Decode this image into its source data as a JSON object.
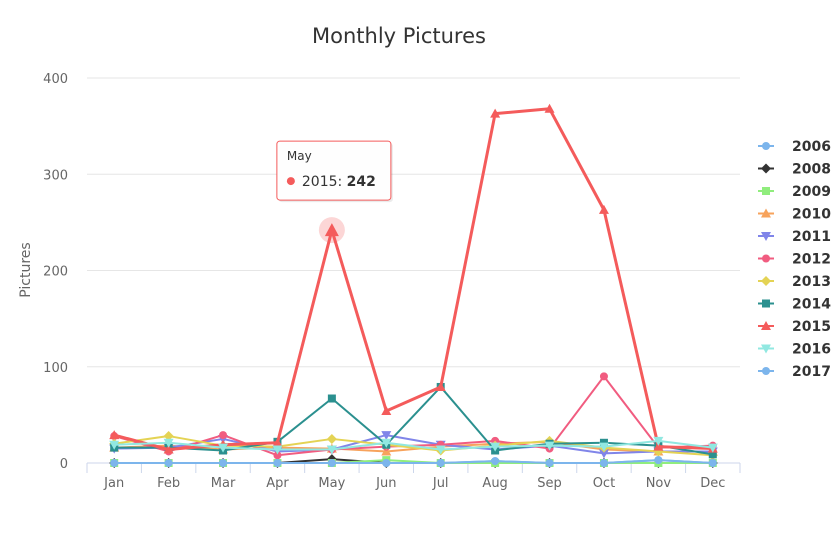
{
  "chart_data": {
    "type": "line",
    "title": "Monthly Pictures",
    "xlabel": "",
    "ylabel": "Pictures",
    "ylim": [
      0,
      400
    ],
    "yticks": [
      "0",
      "100",
      "200",
      "300",
      "400"
    ],
    "categories": [
      "Jan",
      "Feb",
      "Mar",
      "Apr",
      "May",
      "Jun",
      "Jul",
      "Aug",
      "Sep",
      "Oct",
      "Nov",
      "Dec"
    ],
    "grid": true,
    "legend_position": "right",
    "series": [
      {
        "name": "2006",
        "color": "#7cb5ec",
        "marker": "circle",
        "values": [
          0,
          0,
          0,
          0,
          0,
          0,
          0,
          2,
          0,
          0,
          3,
          0
        ]
      },
      {
        "name": "2008",
        "color": "#333333",
        "marker": "diamond",
        "values": [
          0,
          0,
          0,
          0,
          4,
          0,
          0,
          0,
          0,
          0,
          0,
          0
        ]
      },
      {
        "name": "2009",
        "color": "#90ed7d",
        "marker": "square",
        "values": [
          0,
          0,
          0,
          0,
          0,
          3,
          0,
          0,
          0,
          0,
          0,
          0
        ]
      },
      {
        "name": "2010",
        "color": "#f7a35c",
        "marker": "triangle",
        "values": [
          16,
          18,
          14,
          16,
          15,
          12,
          17,
          20,
          22,
          14,
          12,
          12
        ]
      },
      {
        "name": "2011",
        "color": "#8085e9",
        "marker": "triangle-down",
        "values": [
          15,
          16,
          25,
          12,
          14,
          29,
          19,
          14,
          18,
          10,
          12,
          12
        ]
      },
      {
        "name": "2012",
        "color": "#f15c80",
        "marker": "circle",
        "values": [
          28,
          12,
          29,
          8,
          14,
          17,
          19,
          23,
          15,
          90,
          16,
          18
        ]
      },
      {
        "name": "2013",
        "color": "#e4d354",
        "marker": "diamond",
        "values": [
          20,
          28,
          18,
          17,
          25,
          19,
          13,
          18,
          23,
          16,
          12,
          8
        ]
      },
      {
        "name": "2014",
        "color": "#2b908f",
        "marker": "square",
        "values": [
          16,
          16,
          13,
          22,
          67,
          19,
          79,
          13,
          20,
          21,
          18,
          9
        ]
      },
      {
        "name": "2015",
        "color": "#f45b5b",
        "marker": "triangle",
        "values": [
          29,
          14,
          19,
          21,
          242,
          54,
          79,
          363,
          368,
          263,
          17,
          15
        ]
      },
      {
        "name": "2016",
        "color": "#91e8e1",
        "marker": "triangle-down",
        "values": [
          19,
          21,
          16,
          14,
          14,
          21,
          14,
          17,
          18,
          17,
          23,
          16
        ]
      },
      {
        "name": "2017",
        "color": "#7cb5ec",
        "marker": "circle",
        "values": [
          0,
          0,
          0,
          0,
          0,
          0,
          0,
          2,
          0,
          0,
          3,
          0
        ]
      }
    ],
    "tooltip": {
      "month": "May",
      "series": "2015",
      "label": "2015: ",
      "value": "242",
      "color": "#f45b5b"
    }
  }
}
